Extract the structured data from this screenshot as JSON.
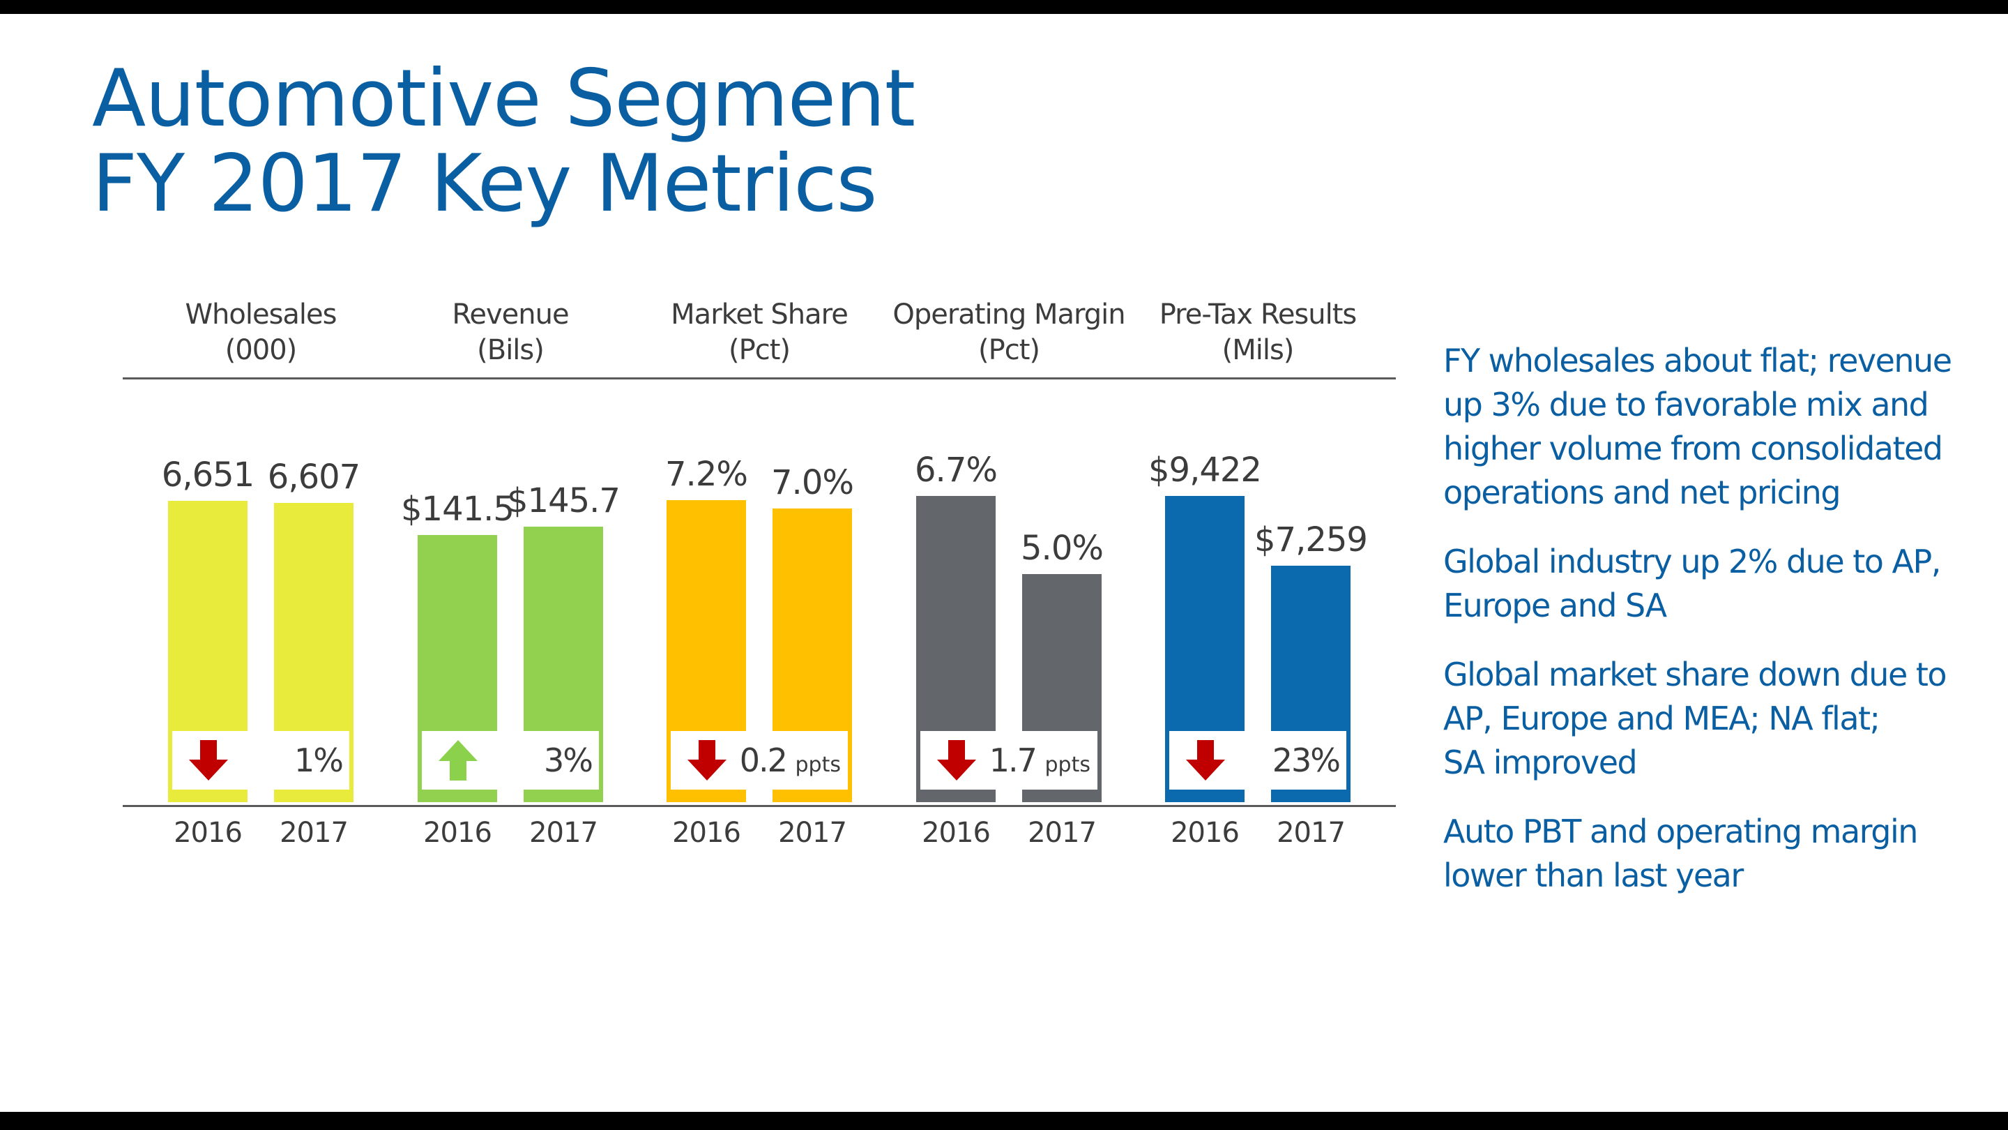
{
  "title": {
    "line1": "Automotive Segment",
    "line2": "FY 2017 Key Metrics"
  },
  "colors": {
    "title": "#0a5fa3",
    "text": "#3c3c3c",
    "down_arrow": "#c00000",
    "up_arrow": "#8cd14b"
  },
  "chart_data": {
    "type": "bar",
    "title": "Automotive Segment FY 2017 Key Metrics",
    "categories": [
      "2016",
      "2017"
    ],
    "metrics": [
      {
        "name": "Wholesales",
        "unit": "(000)",
        "values": [
          6651,
          6607
        ],
        "labels": [
          "6,651",
          "6,607"
        ],
        "change": {
          "direction": "down",
          "value": "1%",
          "unit": ""
        },
        "color": "#e8ea3c",
        "ylim": [
          0,
          8000
        ]
      },
      {
        "name": "Revenue",
        "unit": "(Bils)",
        "values": [
          141.5,
          145.7
        ],
        "labels": [
          "$141.5",
          "$145.7"
        ],
        "change": {
          "direction": "up",
          "value": "3%",
          "unit": ""
        },
        "color": "#92d050",
        "ylim": [
          0,
          192
        ]
      },
      {
        "name": "Market Share",
        "unit": "(Pct)",
        "values": [
          7.2,
          7.0
        ],
        "labels": [
          "7.2%",
          "7.0%"
        ],
        "change": {
          "direction": "down",
          "value": "0.2",
          "unit": "ppts"
        },
        "color": "#ffc000",
        "ylim": [
          0,
          8.65
        ]
      },
      {
        "name": "Operating Margin",
        "unit": "(Pct)",
        "values": [
          6.7,
          5.0
        ],
        "labels": [
          "6.7%",
          "5.0%"
        ],
        "change": {
          "direction": "down",
          "value": "1.7",
          "unit": "ppts"
        },
        "color": "#63666a",
        "ylim": [
          0,
          7.94
        ]
      },
      {
        "name": "Pre-Tax Results",
        "unit": "(Mils)",
        "values": [
          9422,
          7259
        ],
        "labels": [
          "$9,422",
          "$7,259"
        ],
        "change": {
          "direction": "down",
          "value": "23%",
          "unit": ""
        },
        "color": "#0a6aad",
        "ylim": [
          0,
          11150
        ]
      }
    ]
  },
  "commentary": [
    {
      "lines": [
        "FY wholesales about flat; revenue",
        "up 3%  due to favorable mix and",
        "higher volume from consolidated",
        "operations and net pricing"
      ]
    },
    {
      "lines": [
        "Global industry up 2% due to AP,",
        "Europe and SA"
      ]
    },
    {
      "lines": [
        "Global market share down due to",
        "AP, Europe and MEA; NA flat;",
        "SA improved"
      ]
    },
    {
      "lines": [
        "Auto PBT and operating margin",
        "lower than last year"
      ]
    }
  ]
}
